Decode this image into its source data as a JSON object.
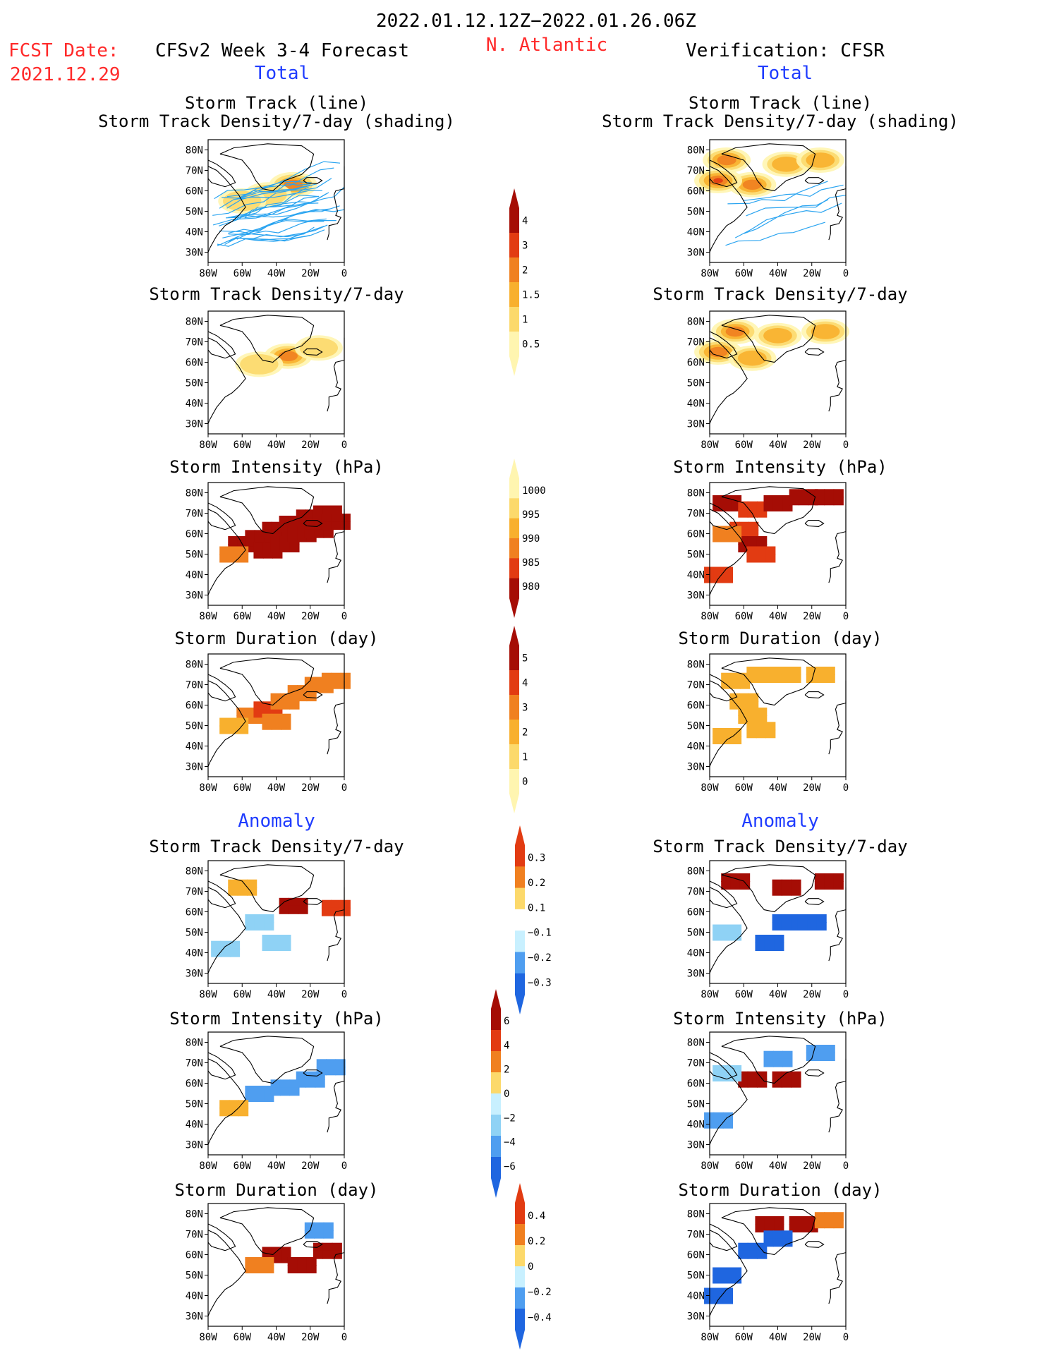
{
  "header": {
    "period": "2022.01.12.12Z−2022.01.26.06Z",
    "fcst_label": "FCST Date:",
    "fcst_date": "2021.12.29",
    "forecast_title": "CFSv2 Week 3-4 Forecast",
    "region": "N. Atlantic",
    "verification_title": "Verification: CFSR",
    "total_label": "Total",
    "anomaly_label": "Anomaly"
  },
  "axis": {
    "lat_ticks": [
      "80N",
      "70N",
      "60N",
      "50N",
      "40N",
      "30N"
    ],
    "lon_ticks": [
      "80W",
      "60W",
      "40W",
      "20W",
      "0"
    ]
  },
  "panel_titles": {
    "track_line": "Storm Track (line)",
    "track_shading": "Storm Track Density/7-day (shading)",
    "density": "Storm Track Density/7-day",
    "intensity": "Storm Intensity (hPa)",
    "duration": "Storm Duration (day)"
  },
  "colors": {
    "ramp_warm": [
      "#fff5b0",
      "#fcd96b",
      "#f8b02e",
      "#f08020",
      "#e23b12",
      "#a50d05"
    ],
    "ramp_cool": [
      "#c8f0ff",
      "#8fd2f5",
      "#4f9ef0",
      "#1f66e0"
    ],
    "track_line": "#2aa4f0",
    "title_red": "#ff2a2a",
    "title_blue": "#1f3cff"
  },
  "chart_data": [
    {
      "type": "heatmap",
      "panel": "forecast-total-track",
      "title": "Storm Track (line) / Storm Track Density/7-day (shading)",
      "xlim": [
        -80,
        0
      ],
      "ylim": [
        25,
        85
      ],
      "blobs": [
        {
          "lon": -30,
          "lat": 63,
          "level": 3
        },
        {
          "lon": -45,
          "lat": 58,
          "level": 1
        },
        {
          "lon": -60,
          "lat": 55,
          "level": 1
        }
      ]
    },
    {
      "type": "heatmap",
      "panel": "verification-total-track",
      "title": "Storm Track (line) / Storm Track Density/7-day (shading)",
      "xlim": [
        -80,
        0
      ],
      "ylim": [
        25,
        85
      ],
      "blobs": [
        {
          "lon": -70,
          "lat": 75,
          "level": 3
        },
        {
          "lon": -55,
          "lat": 63,
          "level": 3
        },
        {
          "lon": -75,
          "lat": 65,
          "level": 4
        },
        {
          "lon": -35,
          "lat": 73,
          "level": 2
        },
        {
          "lon": -15,
          "lat": 75,
          "level": 2
        }
      ]
    },
    {
      "type": "heatmap",
      "panel": "forecast-total-density",
      "title": "Storm Track Density/7-day",
      "xlim": [
        -80,
        0
      ],
      "ylim": [
        25,
        85
      ],
      "levels": [
        0.5,
        1,
        1.5,
        2,
        3,
        4
      ],
      "blobs": [
        {
          "lon": -33,
          "lat": 63,
          "level": 3
        },
        {
          "lon": -50,
          "lat": 59,
          "level": 1
        },
        {
          "lon": -15,
          "lat": 67,
          "level": 1
        }
      ]
    },
    {
      "type": "heatmap",
      "panel": "verification-total-density",
      "title": "Storm Track Density/7-day",
      "xlim": [
        -80,
        0
      ],
      "ylim": [
        25,
        85
      ],
      "levels": [
        0.5,
        1,
        1.5,
        2,
        3,
        4
      ],
      "blobs": [
        {
          "lon": -65,
          "lat": 75,
          "level": 3
        },
        {
          "lon": -40,
          "lat": 73,
          "level": 2
        },
        {
          "lon": -12,
          "lat": 75,
          "level": 2
        },
        {
          "lon": -75,
          "lat": 65,
          "level": 3
        },
        {
          "lon": -55,
          "lat": 62,
          "level": 2
        }
      ]
    },
    {
      "type": "heatmap",
      "panel": "forecast-total-intensity",
      "title": "Storm Intensity (hPa)",
      "levels": [
        980,
        985,
        990,
        995,
        1000
      ],
      "cells": [
        [
          -60,
          55,
          0
        ],
        [
          -50,
          58,
          0
        ],
        [
          -40,
          62,
          0
        ],
        [
          -30,
          65,
          0
        ],
        [
          -20,
          68,
          0
        ],
        [
          -10,
          70,
          0
        ],
        [
          -45,
          52,
          0
        ],
        [
          -35,
          55,
          0
        ],
        [
          -25,
          60,
          0
        ],
        [
          -15,
          62,
          0
        ],
        [
          -5,
          66,
          0
        ],
        [
          -65,
          50,
          2
        ]
      ]
    },
    {
      "type": "heatmap",
      "panel": "verification-total-intensity",
      "title": "Storm Intensity (hPa)",
      "levels": [
        980,
        985,
        990,
        995,
        1000
      ],
      "cells": [
        [
          -70,
          75,
          0
        ],
        [
          -55,
          72,
          1
        ],
        [
          -40,
          75,
          0
        ],
        [
          -25,
          78,
          0
        ],
        [
          -10,
          78,
          0
        ],
        [
          -60,
          62,
          1
        ],
        [
          -55,
          55,
          0
        ],
        [
          -50,
          50,
          1
        ],
        [
          -75,
          40,
          1
        ],
        [
          -70,
          60,
          2
        ]
      ]
    },
    {
      "type": "heatmap",
      "panel": "forecast-total-duration",
      "title": "Storm Duration (day)",
      "levels": [
        0,
        1,
        2,
        3,
        4,
        5
      ],
      "cells": [
        [
          -55,
          55,
          3
        ],
        [
          -45,
          58,
          4
        ],
        [
          -35,
          62,
          3
        ],
        [
          -25,
          66,
          3
        ],
        [
          -15,
          70,
          3
        ],
        [
          -5,
          72,
          3
        ],
        [
          -65,
          50,
          2
        ],
        [
          -40,
          52,
          3
        ]
      ]
    },
    {
      "type": "heatmap",
      "panel": "verification-total-duration",
      "title": "Storm Duration (day)",
      "levels": [
        0,
        1,
        2,
        3,
        4,
        5
      ],
      "cells": [
        [
          -65,
          72,
          2
        ],
        [
          -50,
          75,
          2
        ],
        [
          -35,
          75,
          2
        ],
        [
          -15,
          75,
          2
        ],
        [
          -60,
          62,
          2
        ],
        [
          -55,
          55,
          2
        ],
        [
          -50,
          48,
          2
        ],
        [
          -70,
          45,
          2
        ]
      ]
    },
    {
      "type": "heatmap",
      "panel": "forecast-anomaly-density",
      "title": "Storm Track Density/7-day",
      "levels": [
        -0.3,
        -0.2,
        -0.1,
        0.1,
        0.2,
        0.3
      ],
      "cells": [
        [
          -30,
          63,
          0.3
        ],
        [
          -50,
          55,
          -0.1
        ],
        [
          -40,
          45,
          -0.1
        ],
        [
          -70,
          42,
          -0.1
        ],
        [
          -60,
          72,
          0.1
        ],
        [
          -5,
          62,
          0.2
        ]
      ]
    },
    {
      "type": "heatmap",
      "panel": "verification-anomaly-density",
      "title": "Storm Track Density/7-day",
      "levels": [
        -0.3,
        -0.2,
        -0.1,
        0.1,
        0.2,
        0.3
      ],
      "cells": [
        [
          -65,
          75,
          0.3
        ],
        [
          -35,
          72,
          0.3
        ],
        [
          -10,
          75,
          0.3
        ],
        [
          -35,
          55,
          -0.3
        ],
        [
          -20,
          55,
          -0.3
        ],
        [
          -45,
          45,
          -0.3
        ],
        [
          -70,
          50,
          -0.1
        ]
      ]
    },
    {
      "type": "heatmap",
      "panel": "forecast-anomaly-intensity",
      "title": "Storm Intensity (hPa)",
      "levels": [
        -6,
        -4,
        -2,
        0,
        2,
        4,
        6
      ],
      "cells": [
        [
          -50,
          55,
          -4
        ],
        [
          -35,
          58,
          -4
        ],
        [
          -20,
          62,
          -4
        ],
        [
          -8,
          68,
          -4
        ],
        [
          -65,
          48,
          2
        ]
      ]
    },
    {
      "type": "heatmap",
      "panel": "verification-anomaly-intensity",
      "title": "Storm Intensity (hPa)",
      "levels": [
        -6,
        -4,
        -2,
        0,
        2,
        4,
        6
      ],
      "cells": [
        [
          -40,
          72,
          -4
        ],
        [
          -15,
          75,
          -4
        ],
        [
          -55,
          62,
          6
        ],
        [
          -35,
          62,
          6
        ],
        [
          -70,
          65,
          -2
        ],
        [
          -75,
          42,
          -4
        ]
      ]
    },
    {
      "type": "heatmap",
      "panel": "forecast-anomaly-duration",
      "title": "Storm Duration (day)",
      "levels": [
        -0.4,
        -0.2,
        0,
        0.2,
        0.4
      ],
      "cells": [
        [
          -40,
          60,
          0.4
        ],
        [
          -25,
          55,
          0.4
        ],
        [
          -10,
          62,
          0.4
        ],
        [
          -50,
          55,
          0.2
        ],
        [
          -15,
          72,
          -0.2
        ]
      ]
    },
    {
      "type": "heatmap",
      "panel": "verification-anomaly-duration",
      "title": "Storm Duration (day)",
      "levels": [
        -0.4,
        -0.2,
        0,
        0.2,
        0.4
      ],
      "cells": [
        [
          -45,
          75,
          0.4
        ],
        [
          -25,
          75,
          0.4
        ],
        [
          -10,
          77,
          0.2
        ],
        [
          -55,
          62,
          -0.4
        ],
        [
          -40,
          68,
          -0.4
        ],
        [
          -70,
          50,
          -0.4
        ],
        [
          -75,
          40,
          -0.4
        ]
      ]
    }
  ],
  "colorbars": [
    {
      "id": "cb-density-total",
      "labels": [
        "4",
        "3",
        "2",
        "1.5",
        "1",
        "0.5"
      ]
    },
    {
      "id": "cb-intensity-total",
      "labels": [
        "1000",
        "995",
        "990",
        "985",
        "980"
      ]
    },
    {
      "id": "cb-duration-total",
      "labels": [
        "5",
        "4",
        "3",
        "2",
        "1",
        "0"
      ]
    },
    {
      "id": "cb-density-anom",
      "labels": [
        "0.3",
        "0.2",
        "0.1",
        "−0.1",
        "−0.2",
        "−0.3"
      ]
    },
    {
      "id": "cb-intensity-anom",
      "labels": [
        "6",
        "4",
        "2",
        "0",
        "−2",
        "−4",
        "−6"
      ]
    },
    {
      "id": "cb-duration-anom",
      "labels": [
        "0.4",
        "0.2",
        "0",
        "−0.2",
        "−0.4"
      ]
    }
  ]
}
